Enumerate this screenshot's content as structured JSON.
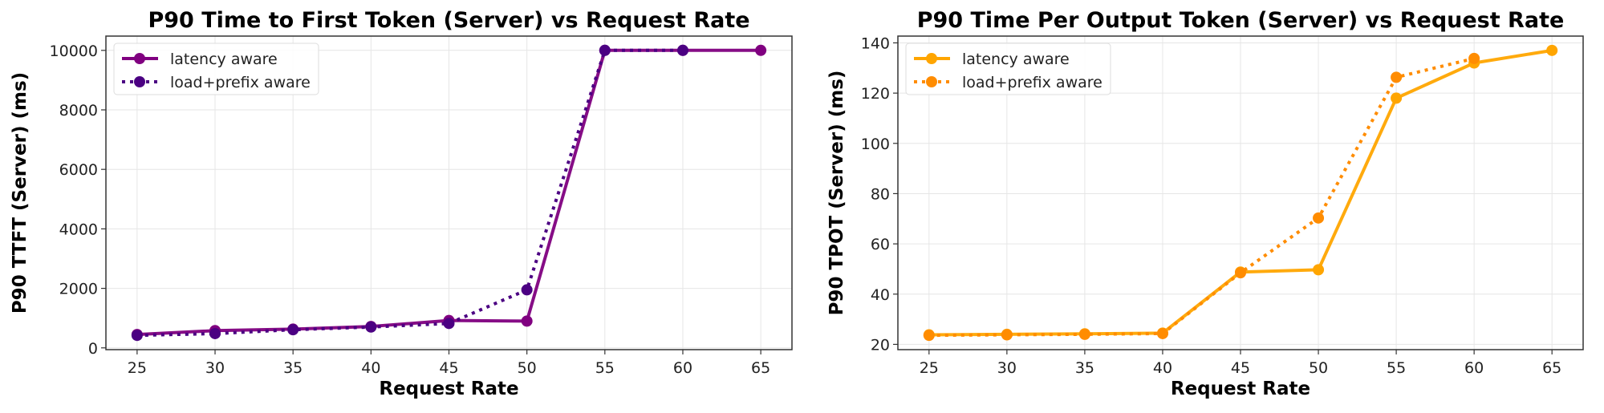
{
  "chart_data": [
    {
      "type": "line",
      "title": "P90 Time to First Token (Server) vs Request Rate",
      "xlabel": "Request Rate",
      "ylabel": "P90 TTFT (Server) (ms)",
      "x": [
        25,
        30,
        35,
        40,
        45,
        50,
        55,
        60,
        65
      ],
      "xticks": [
        25,
        30,
        35,
        40,
        45,
        50,
        55,
        60,
        65
      ],
      "yticks": [
        0,
        2000,
        4000,
        6000,
        8000,
        10000
      ],
      "xlim": [
        23,
        67
      ],
      "ylim": [
        -60,
        10480
      ],
      "grid": true,
      "legend_position": "top-left",
      "series": [
        {
          "name": "latency aware",
          "style": "solid",
          "color": "#800080",
          "values": [
            450,
            580,
            630,
            720,
            920,
            900,
            10000,
            10000,
            10000
          ]
        },
        {
          "name": "load+prefix aware",
          "style": "dotted",
          "color": "#4B0082",
          "values": [
            420,
            480,
            610,
            700,
            820,
            1950,
            10000,
            10000,
            null
          ]
        }
      ]
    },
    {
      "type": "line",
      "title": "P90 Time Per Output Token (Server) vs Request Rate",
      "xlabel": "Request Rate",
      "ylabel": "P90 TPOT (Server) (ms)",
      "x": [
        25,
        30,
        35,
        40,
        45,
        50,
        55,
        60,
        65
      ],
      "xticks": [
        25,
        30,
        35,
        40,
        45,
        50,
        55,
        60,
        65
      ],
      "yticks": [
        20,
        40,
        60,
        80,
        100,
        120,
        140
      ],
      "xlim": [
        23,
        67
      ],
      "ylim": [
        17.9,
        142.7
      ],
      "grid": true,
      "legend_position": "top-left",
      "series": [
        {
          "name": "latency aware",
          "style": "solid",
          "color": "#FFA500",
          "values": [
            23.8,
            24.0,
            24.2,
            24.5,
            48.8,
            49.7,
            118,
            132,
            137
          ]
        },
        {
          "name": "load+prefix aware",
          "style": "dotted",
          "color": "#FF8C00",
          "values": [
            23.6,
            23.8,
            24.0,
            24.3,
            48.5,
            70.3,
            126.3,
            133.8,
            null
          ]
        }
      ]
    }
  ]
}
